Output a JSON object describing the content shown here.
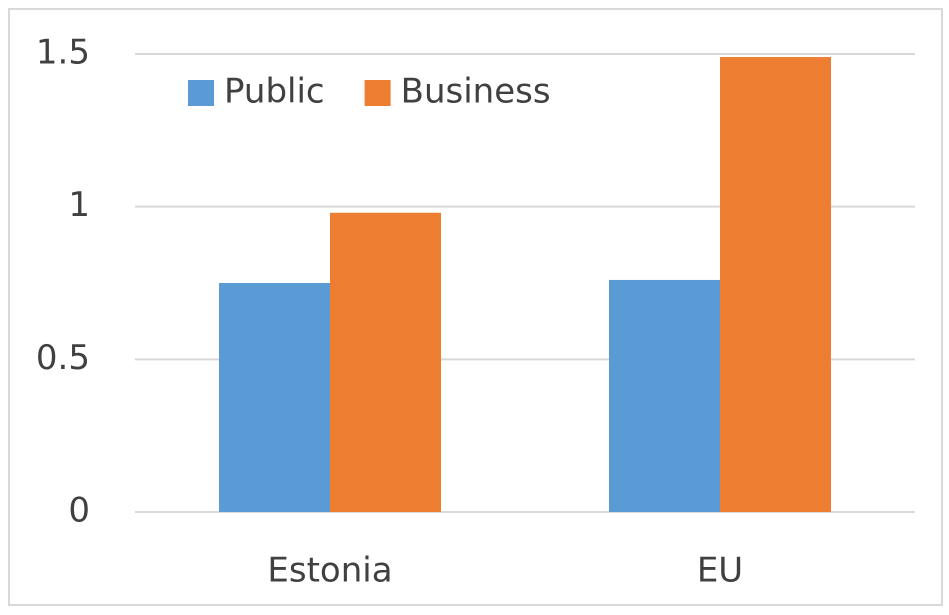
{
  "chart_data": {
    "type": "bar",
    "categories": [
      "Estonia",
      "EU"
    ],
    "series": [
      {
        "name": "Public",
        "color": "#5b9bd5",
        "values": [
          0.75,
          0.76
        ]
      },
      {
        "name": "Business",
        "color": "#ed7d31",
        "values": [
          0.98,
          1.49
        ]
      }
    ],
    "ylim": [
      0,
      1.5
    ],
    "yticks": [
      0,
      0.5,
      1,
      1.5
    ],
    "grid": true,
    "legend": "top-left"
  }
}
